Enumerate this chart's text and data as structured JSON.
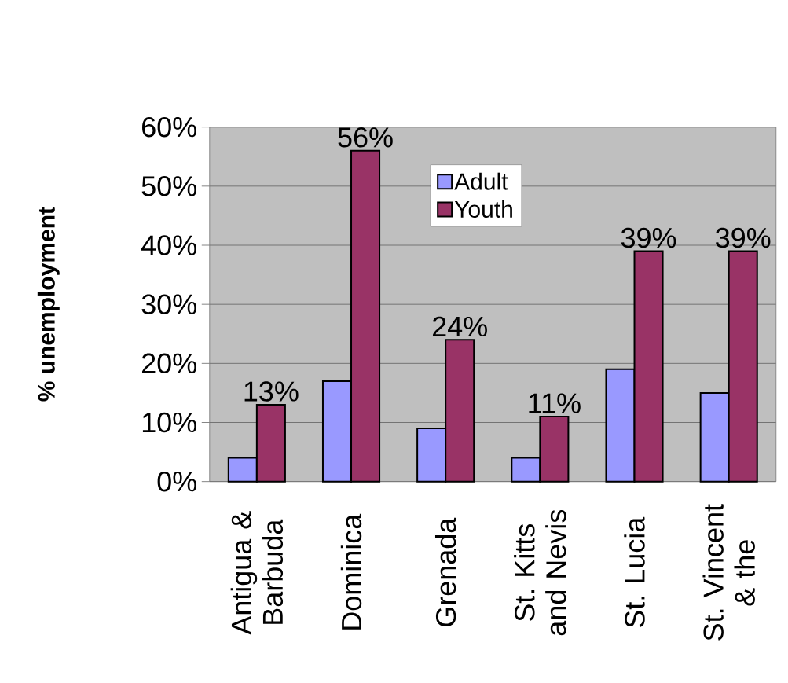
{
  "chart_data": {
    "type": "bar",
    "ylabel": "% unemployment",
    "categories": [
      "Antigua & Barbuda",
      "Dominica",
      "Grenada",
      "St. Kitts and Nevis",
      "St. Lucia",
      "St. Vincent & the"
    ],
    "series": [
      {
        "name": "Adult",
        "color": "#9999ff",
        "values": [
          4,
          17,
          9,
          4,
          19,
          15
        ]
      },
      {
        "name": "Youth",
        "color": "#993366",
        "values": [
          13,
          56,
          24,
          11,
          39,
          39
        ],
        "value_labels": [
          "13%",
          "56%",
          "24%",
          "11%",
          "39%",
          "39%"
        ]
      }
    ],
    "ylim": [
      0,
      60
    ],
    "yticks": [
      {
        "value": 0,
        "label": "0%"
      },
      {
        "value": 10,
        "label": "10%"
      },
      {
        "value": 20,
        "label": "20%"
      },
      {
        "value": 30,
        "label": "30%"
      },
      {
        "value": 40,
        "label": "40%"
      },
      {
        "value": 50,
        "label": "50%"
      },
      {
        "value": 60,
        "label": "60%"
      }
    ],
    "grid": "y",
    "legend": "top"
  }
}
